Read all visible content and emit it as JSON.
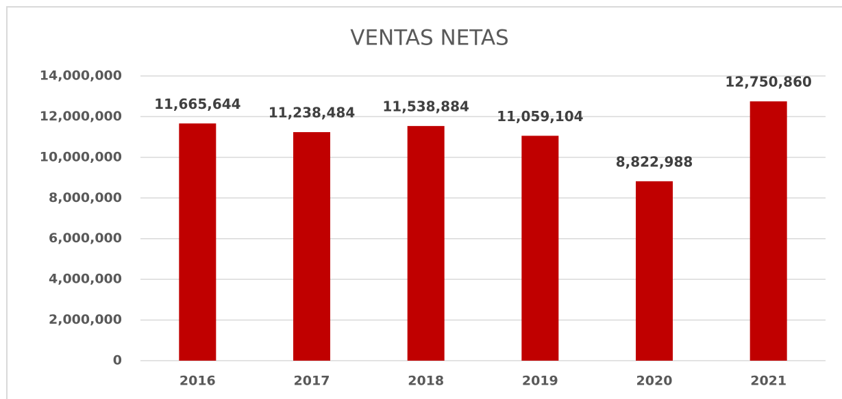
{
  "chart_data": {
    "type": "bar",
    "title": "VENTAS NETAS",
    "categories": [
      "2016",
      "2017",
      "2018",
      "2019",
      "2020",
      "2021"
    ],
    "values": [
      11665644,
      11238484,
      11538884,
      11059104,
      8822988,
      12750860
    ],
    "value_labels": [
      "11,665,644",
      "11,238,484",
      "11,538,884",
      "11,059,104",
      "8,822,988",
      "12,750,860"
    ],
    "color": "#c00000",
    "ylim": [
      0,
      14000000
    ],
    "yticks": [
      0,
      {
        "value": 2000000,
        "label": "2,000,000"
      },
      {
        "value": 4000000,
        "label": "4,000,000"
      },
      {
        "value": 6000000,
        "label": "6,000,000"
      },
      {
        "value": 8000000,
        "label": "8,000,000"
      },
      {
        "value": 10000000,
        "label": "10,000,000"
      },
      {
        "value": 12000000,
        "label": "12,000,000"
      },
      {
        "value": 14000000,
        "label": "14,000,000"
      }
    ],
    "grid": true
  }
}
